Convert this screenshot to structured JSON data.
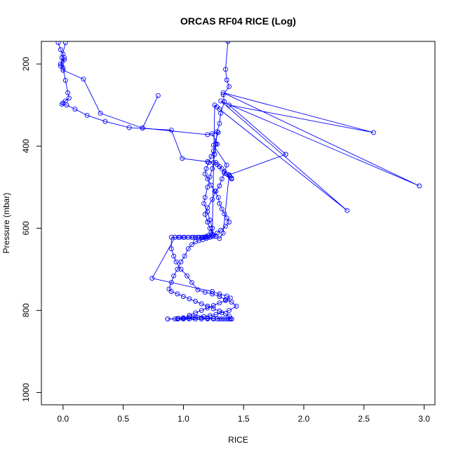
{
  "chart_data": {
    "type": "line",
    "title": "ORCAS RF04 RICE (Log)",
    "xlabel": "RICE",
    "ylabel": "Pressure (mbar)",
    "xlim": [
      -0.18,
      3.09
    ],
    "ylim": [
      1030,
      145
    ],
    "y_reversed": true,
    "xticks": [
      0.0,
      0.5,
      1.0,
      1.5,
      2.0,
      2.5,
      3.0
    ],
    "xtick_labels": [
      "0.0",
      "0.5",
      "1.0",
      "1.5",
      "2.0",
      "2.5",
      "3.0"
    ],
    "yticks": [
      200,
      400,
      600,
      800,
      1000
    ],
    "ytick_labels": [
      "200",
      "400",
      "600",
      "800",
      "1000"
    ],
    "grid": false,
    "series_color": "#0000ff",
    "series": [
      {
        "x": [
          1.37,
          1.35,
          1.36,
          1.38,
          1.33,
          1.34,
          1.31,
          1.3,
          1.28,
          1.27,
          1.26,
          1.25,
          1.24,
          1.22,
          1.2,
          1.18,
          1.17,
          1.2,
          1.22,
          1.24,
          1.23,
          1.21,
          1.19,
          1.2,
          1.17,
          1.15,
          1.12,
          1.08,
          1.04,
          1.0,
          0.96,
          0.93,
          0.9,
          0.9,
          0.92,
          0.94,
          0.98,
          1.03,
          1.07,
          1.12,
          1.18,
          1.24,
          1.3,
          1.35,
          1.4,
          1.44,
          1.38,
          1.32,
          1.27,
          1.22,
          1.17,
          1.12,
          1.08,
          1.04,
          1.0,
          0.96,
          0.93,
          0.87
        ],
        "y": [
          145,
          213,
          239,
          255,
          275,
          292,
          320,
          345,
          365,
          395,
          420,
          440,
          455,
          475,
          500,
          525,
          540,
          560,
          580,
          600,
          610,
          617,
          620,
          622,
          622,
          622,
          622,
          622,
          622,
          622,
          622,
          622,
          622,
          650,
          668,
          682,
          700,
          716,
          732,
          750,
          756,
          760,
          766,
          774,
          780,
          790,
          800,
          806,
          810,
          813,
          815,
          817,
          818,
          819,
          820,
          820,
          821,
          821
        ]
      },
      {
        "x": [
          0.02,
          -0.01,
          -0.02,
          0.01,
          0.0,
          0.17,
          0.31,
          0.66,
          0.79,
          0.66,
          1.2,
          1.29,
          1.25,
          1.36,
          1.34,
          1.32,
          1.3,
          1.27,
          1.24,
          1.2,
          1.18,
          1.2,
          1.22,
          1.24,
          1.27,
          1.3,
          1.33,
          1.38,
          1.85,
          1.38,
          2.58,
          1.33,
          2.96,
          1.31,
          2.36,
          1.3,
          1.28,
          1.26,
          1.24,
          1.22,
          1.2,
          1.18,
          1.16,
          1.13,
          1.1,
          1.07,
          1.04,
          1.01,
          0.97,
          0.93,
          0.74,
          1.24,
          1.3,
          1.36,
          1.39,
          1.35,
          1.3,
          1.25,
          1.2,
          1.15,
          1.1,
          1.05
        ],
        "y": [
          148,
          185,
          205,
          185,
          215,
          237,
          320,
          356,
          277,
          356,
          372,
          367,
          398,
          446,
          466,
          480,
          497,
          510,
          530,
          550,
          566,
          585,
          600,
          615,
          620,
          625,
          612,
          470,
          420,
          300,
          367,
          270,
          497,
          290,
          557,
          310,
          305,
          300,
          620,
          622,
          622,
          622,
          622,
          622,
          622,
          622,
          622,
          622,
          622,
          622,
          722,
          754,
          760,
          765,
          770,
          776,
          782,
          788,
          794,
          800,
          806,
          812
        ]
      },
      {
        "x": [
          -0.04,
          -0.02,
          0.0,
          0.01,
          -0.02,
          0.0,
          0.02,
          0.04,
          0.05,
          0.02,
          0.0,
          -0.01,
          0.03,
          0.1,
          0.2,
          0.35,
          0.55,
          0.9,
          0.99,
          1.2,
          1.27,
          1.28,
          1.3,
          1.32,
          1.34,
          1.36,
          1.38,
          1.39,
          1.4,
          1.4
        ],
        "y": [
          148,
          165,
          176,
          190,
          200,
          210,
          240,
          270,
          283,
          290,
          295,
          298,
          300,
          310,
          325,
          340,
          355,
          361,
          430,
          438,
          440,
          445,
          450,
          455,
          462,
          468,
          472,
          475,
          478,
          480
        ]
      },
      {
        "x": [
          1.24,
          1.28,
          1.25,
          1.23,
          1.21,
          1.19,
          1.18,
          1.2,
          1.23,
          1.26,
          1.29,
          1.3,
          1.32,
          1.34,
          1.36,
          1.38,
          1.35,
          1.31,
          1.28,
          1.25,
          1.22,
          1.19,
          1.16,
          1.13,
          1.1,
          1.07,
          1.04,
          1.01,
          0.98,
          0.95,
          0.92,
          0.9,
          0.88,
          0.9,
          0.95,
          1.0,
          1.05,
          1.1,
          1.15,
          1.2,
          1.25,
          1.3,
          1.35,
          1.38,
          1.4
        ],
        "y": [
          370,
          395,
          412,
          425,
          440,
          455,
          468,
          480,
          495,
          510,
          525,
          540,
          553,
          565,
          575,
          585,
          595,
          605,
          612,
          618,
          622,
          625,
          628,
          630,
          633,
          640,
          650,
          668,
          682,
          700,
          716,
          732,
          748,
          754,
          760,
          766,
          772,
          778,
          784,
          790,
          796,
          802,
          808,
          814,
          821
        ]
      },
      {
        "x": [
          0.87,
          0.95,
          1.0,
          1.05,
          1.1,
          1.15,
          1.2,
          1.25,
          1.28,
          1.3,
          1.32,
          1.34,
          1.36,
          1.38,
          1.39,
          1.4,
          1.25,
          1.2,
          1.15,
          1.1,
          1.05,
          1.0,
          0.95
        ],
        "y": [
          821,
          821,
          821,
          821,
          821,
          821,
          821,
          821,
          821,
          821,
          821,
          821,
          821,
          821,
          821,
          821,
          820,
          819,
          818,
          817,
          816,
          818,
          820
        ]
      }
    ]
  }
}
